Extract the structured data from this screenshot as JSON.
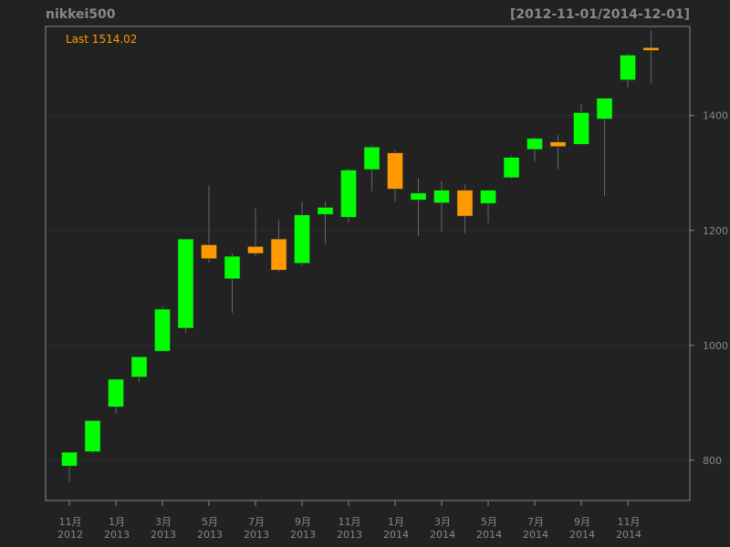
{
  "chart_data": {
    "type": "candlestick",
    "title": "nikkei500",
    "date_range": "[2012-11-01/2014-12-01]",
    "last_label": "Last 1514.02",
    "ylim": [
      730,
      1555
    ],
    "y_ticks": [
      800,
      1000,
      1200,
      1400
    ],
    "grid": true,
    "colors": {
      "background": "#222222",
      "up": "#00ff00",
      "down": "#ff9900",
      "wick": "#666666",
      "grid": "#2f2f2f",
      "text": "#888888",
      "frame": "#888888"
    },
    "candles": [
      {
        "date": "2012-11",
        "open": 790,
        "high": 812,
        "low": 762,
        "close": 814
      },
      {
        "date": "2012-12",
        "open": 815,
        "high": 870,
        "low": 812,
        "close": 869
      },
      {
        "date": "2013-01",
        "open": 893,
        "high": 942,
        "low": 881,
        "close": 941
      },
      {
        "date": "2013-02",
        "open": 945,
        "high": 980,
        "low": 936,
        "close": 980
      },
      {
        "date": "2013-03",
        "open": 990,
        "high": 1068,
        "low": 988,
        "close": 1063
      },
      {
        "date": "2013-04",
        "open": 1030,
        "high": 1185,
        "low": 1022,
        "close": 1185
      },
      {
        "date": "2013-05",
        "open": 1175,
        "high": 1278,
        "low": 1144,
        "close": 1151
      },
      {
        "date": "2013-06",
        "open": 1116,
        "high": 1160,
        "low": 1056,
        "close": 1155
      },
      {
        "date": "2013-07",
        "open": 1172,
        "high": 1238,
        "low": 1155,
        "close": 1160
      },
      {
        "date": "2013-08",
        "open": 1185,
        "high": 1218,
        "low": 1127,
        "close": 1131
      },
      {
        "date": "2013-09",
        "open": 1143,
        "high": 1250,
        "low": 1139,
        "close": 1227
      },
      {
        "date": "2013-10",
        "open": 1228,
        "high": 1250,
        "low": 1177,
        "close": 1240
      },
      {
        "date": "2013-11",
        "open": 1223,
        "high": 1308,
        "low": 1214,
        "close": 1305
      },
      {
        "date": "2013-12",
        "open": 1306,
        "high": 1348,
        "low": 1268,
        "close": 1345
      },
      {
        "date": "2014-01",
        "open": 1335,
        "high": 1340,
        "low": 1250,
        "close": 1272
      },
      {
        "date": "2014-02",
        "open": 1253,
        "high": 1290,
        "low": 1190,
        "close": 1265
      },
      {
        "date": "2014-03",
        "open": 1248,
        "high": 1286,
        "low": 1198,
        "close": 1270
      },
      {
        "date": "2014-04",
        "open": 1270,
        "high": 1280,
        "low": 1195,
        "close": 1225
      },
      {
        "date": "2014-05",
        "open": 1247,
        "high": 1270,
        "low": 1213,
        "close": 1270
      },
      {
        "date": "2014-06",
        "open": 1292,
        "high": 1330,
        "low": 1290,
        "close": 1327
      },
      {
        "date": "2014-07",
        "open": 1341,
        "high": 1362,
        "low": 1320,
        "close": 1360
      },
      {
        "date": "2014-08",
        "open": 1354,
        "high": 1366,
        "low": 1307,
        "close": 1346
      },
      {
        "date": "2014-09",
        "open": 1350,
        "high": 1420,
        "low": 1348,
        "close": 1405
      },
      {
        "date": "2014-10",
        "open": 1394,
        "high": 1428,
        "low": 1260,
        "close": 1430
      },
      {
        "date": "2014-11",
        "open": 1462,
        "high": 1508,
        "low": 1449,
        "close": 1505
      },
      {
        "date": "2014-12",
        "open": 1518,
        "high": 1548,
        "low": 1456,
        "close": 1514.02
      }
    ],
    "x_tick_labels": [
      {
        "index": 0,
        "month": "11月",
        "year": "2012"
      },
      {
        "index": 2,
        "month": "1月",
        "year": "2013"
      },
      {
        "index": 4,
        "month": "3月",
        "year": "2013"
      },
      {
        "index": 6,
        "month": "5月",
        "year": "2013"
      },
      {
        "index": 8,
        "month": "7月",
        "year": "2013"
      },
      {
        "index": 10,
        "month": "9月",
        "year": "2013"
      },
      {
        "index": 12,
        "month": "11月",
        "year": "2013"
      },
      {
        "index": 14,
        "month": "1月",
        "year": "2014"
      },
      {
        "index": 16,
        "month": "3月",
        "year": "2014"
      },
      {
        "index": 18,
        "month": "5月",
        "year": "2014"
      },
      {
        "index": 20,
        "month": "7月",
        "year": "2014"
      },
      {
        "index": 22,
        "month": "9月",
        "year": "2014"
      },
      {
        "index": 24,
        "month": "11月",
        "year": "2014"
      }
    ]
  }
}
